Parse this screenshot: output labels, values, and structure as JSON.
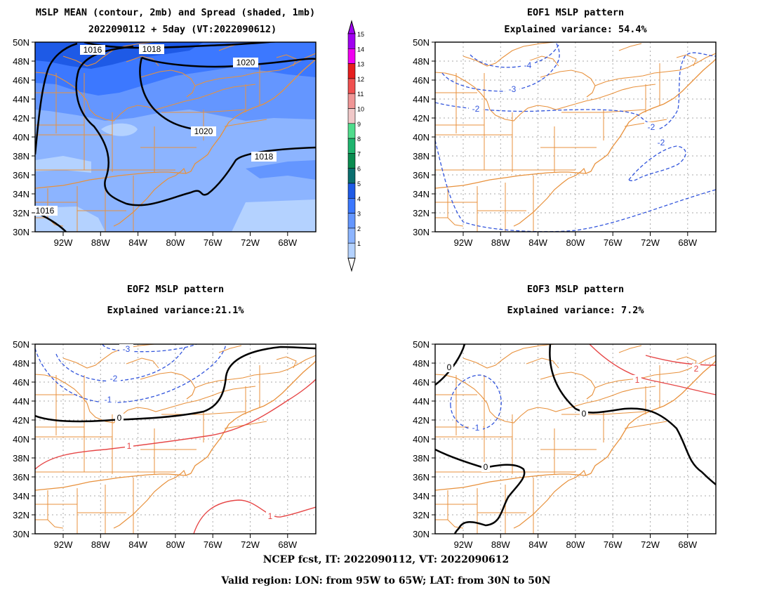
{
  "figure": {
    "panel1": {
      "title_line1": "MSLP MEAN (contour, 2mb) and Spread (shaded, 1mb)",
      "title_line2": "2022090112 + 5day (VT:2022090612)",
      "contour_labels": [
        "1016",
        "1018",
        "1020",
        "1020",
        "1018",
        "1016"
      ],
      "colorbar_labels": [
        "1",
        "2",
        "3",
        "4",
        "5",
        "6",
        "7",
        "8",
        "9",
        "10",
        "11",
        "12",
        "13",
        "14",
        "15"
      ],
      "colorbar_colors": [
        "#b4d2ff",
        "#8cb4ff",
        "#6496ff",
        "#3c78ff",
        "#1e5ae6",
        "#0a6e6e",
        "#0a8c50",
        "#1eb46e",
        "#50dc8c",
        "#f0c8c8",
        "#f09696",
        "#f05050",
        "#e61e1e",
        "#f000f0",
        "#a000f0"
      ]
    },
    "panel2": {
      "title_line1": "EOF1 MSLP pattern",
      "title_line2": "Explained variance: 54.4%",
      "contour_labels": [
        "-4",
        "-3",
        "-2",
        "-2",
        "-2"
      ]
    },
    "panel3": {
      "title_line1": "EOF2 MSLP pattern",
      "title_line2": "Explained variance:21.1%",
      "contour_labels": [
        "-3",
        "-2",
        "-1",
        "0",
        "1",
        "1"
      ]
    },
    "panel4": {
      "title_line1": "EOF3 MSLP pattern",
      "title_line2": "Explained variance: 7.2%",
      "contour_labels": [
        "0",
        "-1",
        "0",
        "0",
        "1",
        "2"
      ]
    },
    "axes": {
      "lat_ticks": [
        "50N",
        "48N",
        "46N",
        "44N",
        "42N",
        "40N",
        "38N",
        "36N",
        "34N",
        "32N",
        "30N"
      ],
      "lon_ticks": [
        "92W",
        "88W",
        "84W",
        "80W",
        "76W",
        "72W",
        "68W"
      ],
      "lat_range": [
        30,
        50
      ],
      "lon_range": [
        -95,
        -65
      ]
    },
    "footer_line1": "NCEP fcst, IT: 2022090112, VT: 2022090612",
    "footer_line2": "Valid region: LON: from 95W to 65W; LAT: from 30N to 50N",
    "colors": {
      "map_border": "#e8913c",
      "positive": "#e64646",
      "negative": "#3255dc",
      "zero": "#000000"
    }
  }
}
